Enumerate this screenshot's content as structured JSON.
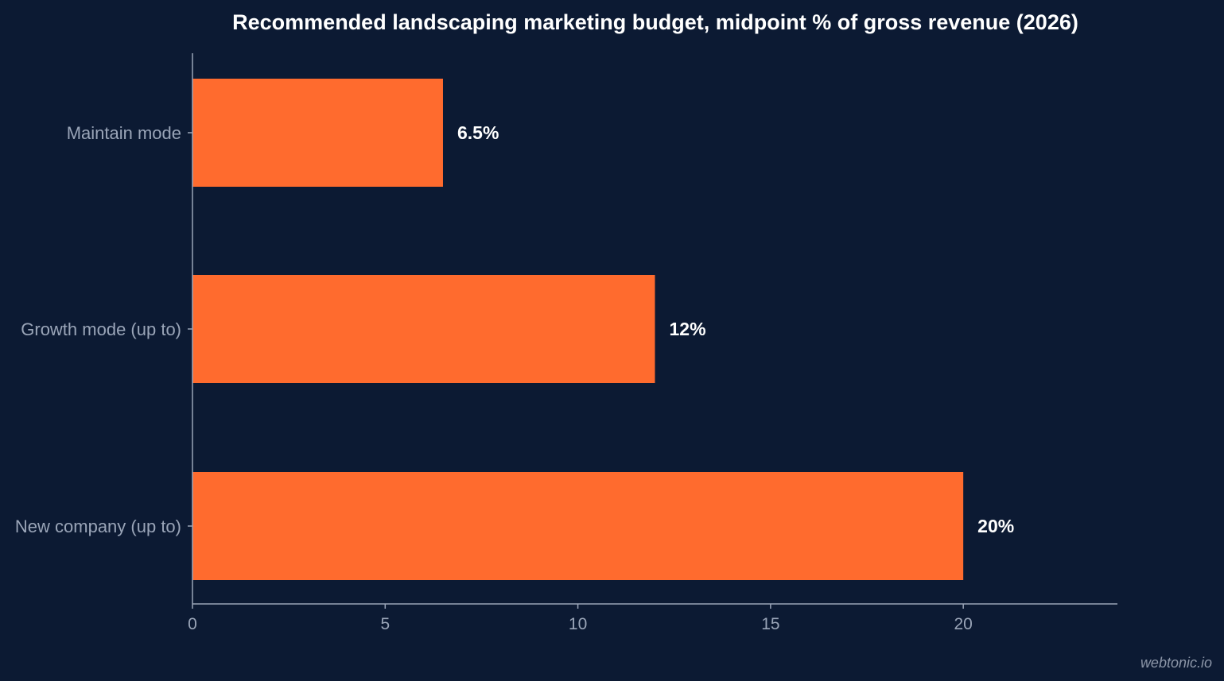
{
  "chart_data": {
    "type": "bar",
    "orientation": "horizontal",
    "title": "Recommended landscaping marketing budget, midpoint % of gross revenue (2026)",
    "xlabel": "",
    "ylabel": "",
    "categories": [
      "Maintain mode",
      "Growth mode (up to)",
      "New company (up to)"
    ],
    "values": [
      6.5,
      12,
      20
    ],
    "value_labels": [
      "6.5%",
      "12%",
      "20%"
    ],
    "xlim": [
      0,
      24
    ],
    "xticks": [
      0,
      5,
      10,
      15,
      20
    ],
    "grid": false,
    "legend": "none"
  },
  "colors": {
    "background": "#0c1a33",
    "bar": "#ff6b2e",
    "axis": "#9aa5b8",
    "text": "#ffffff"
  },
  "watermark": "webtonic.io"
}
